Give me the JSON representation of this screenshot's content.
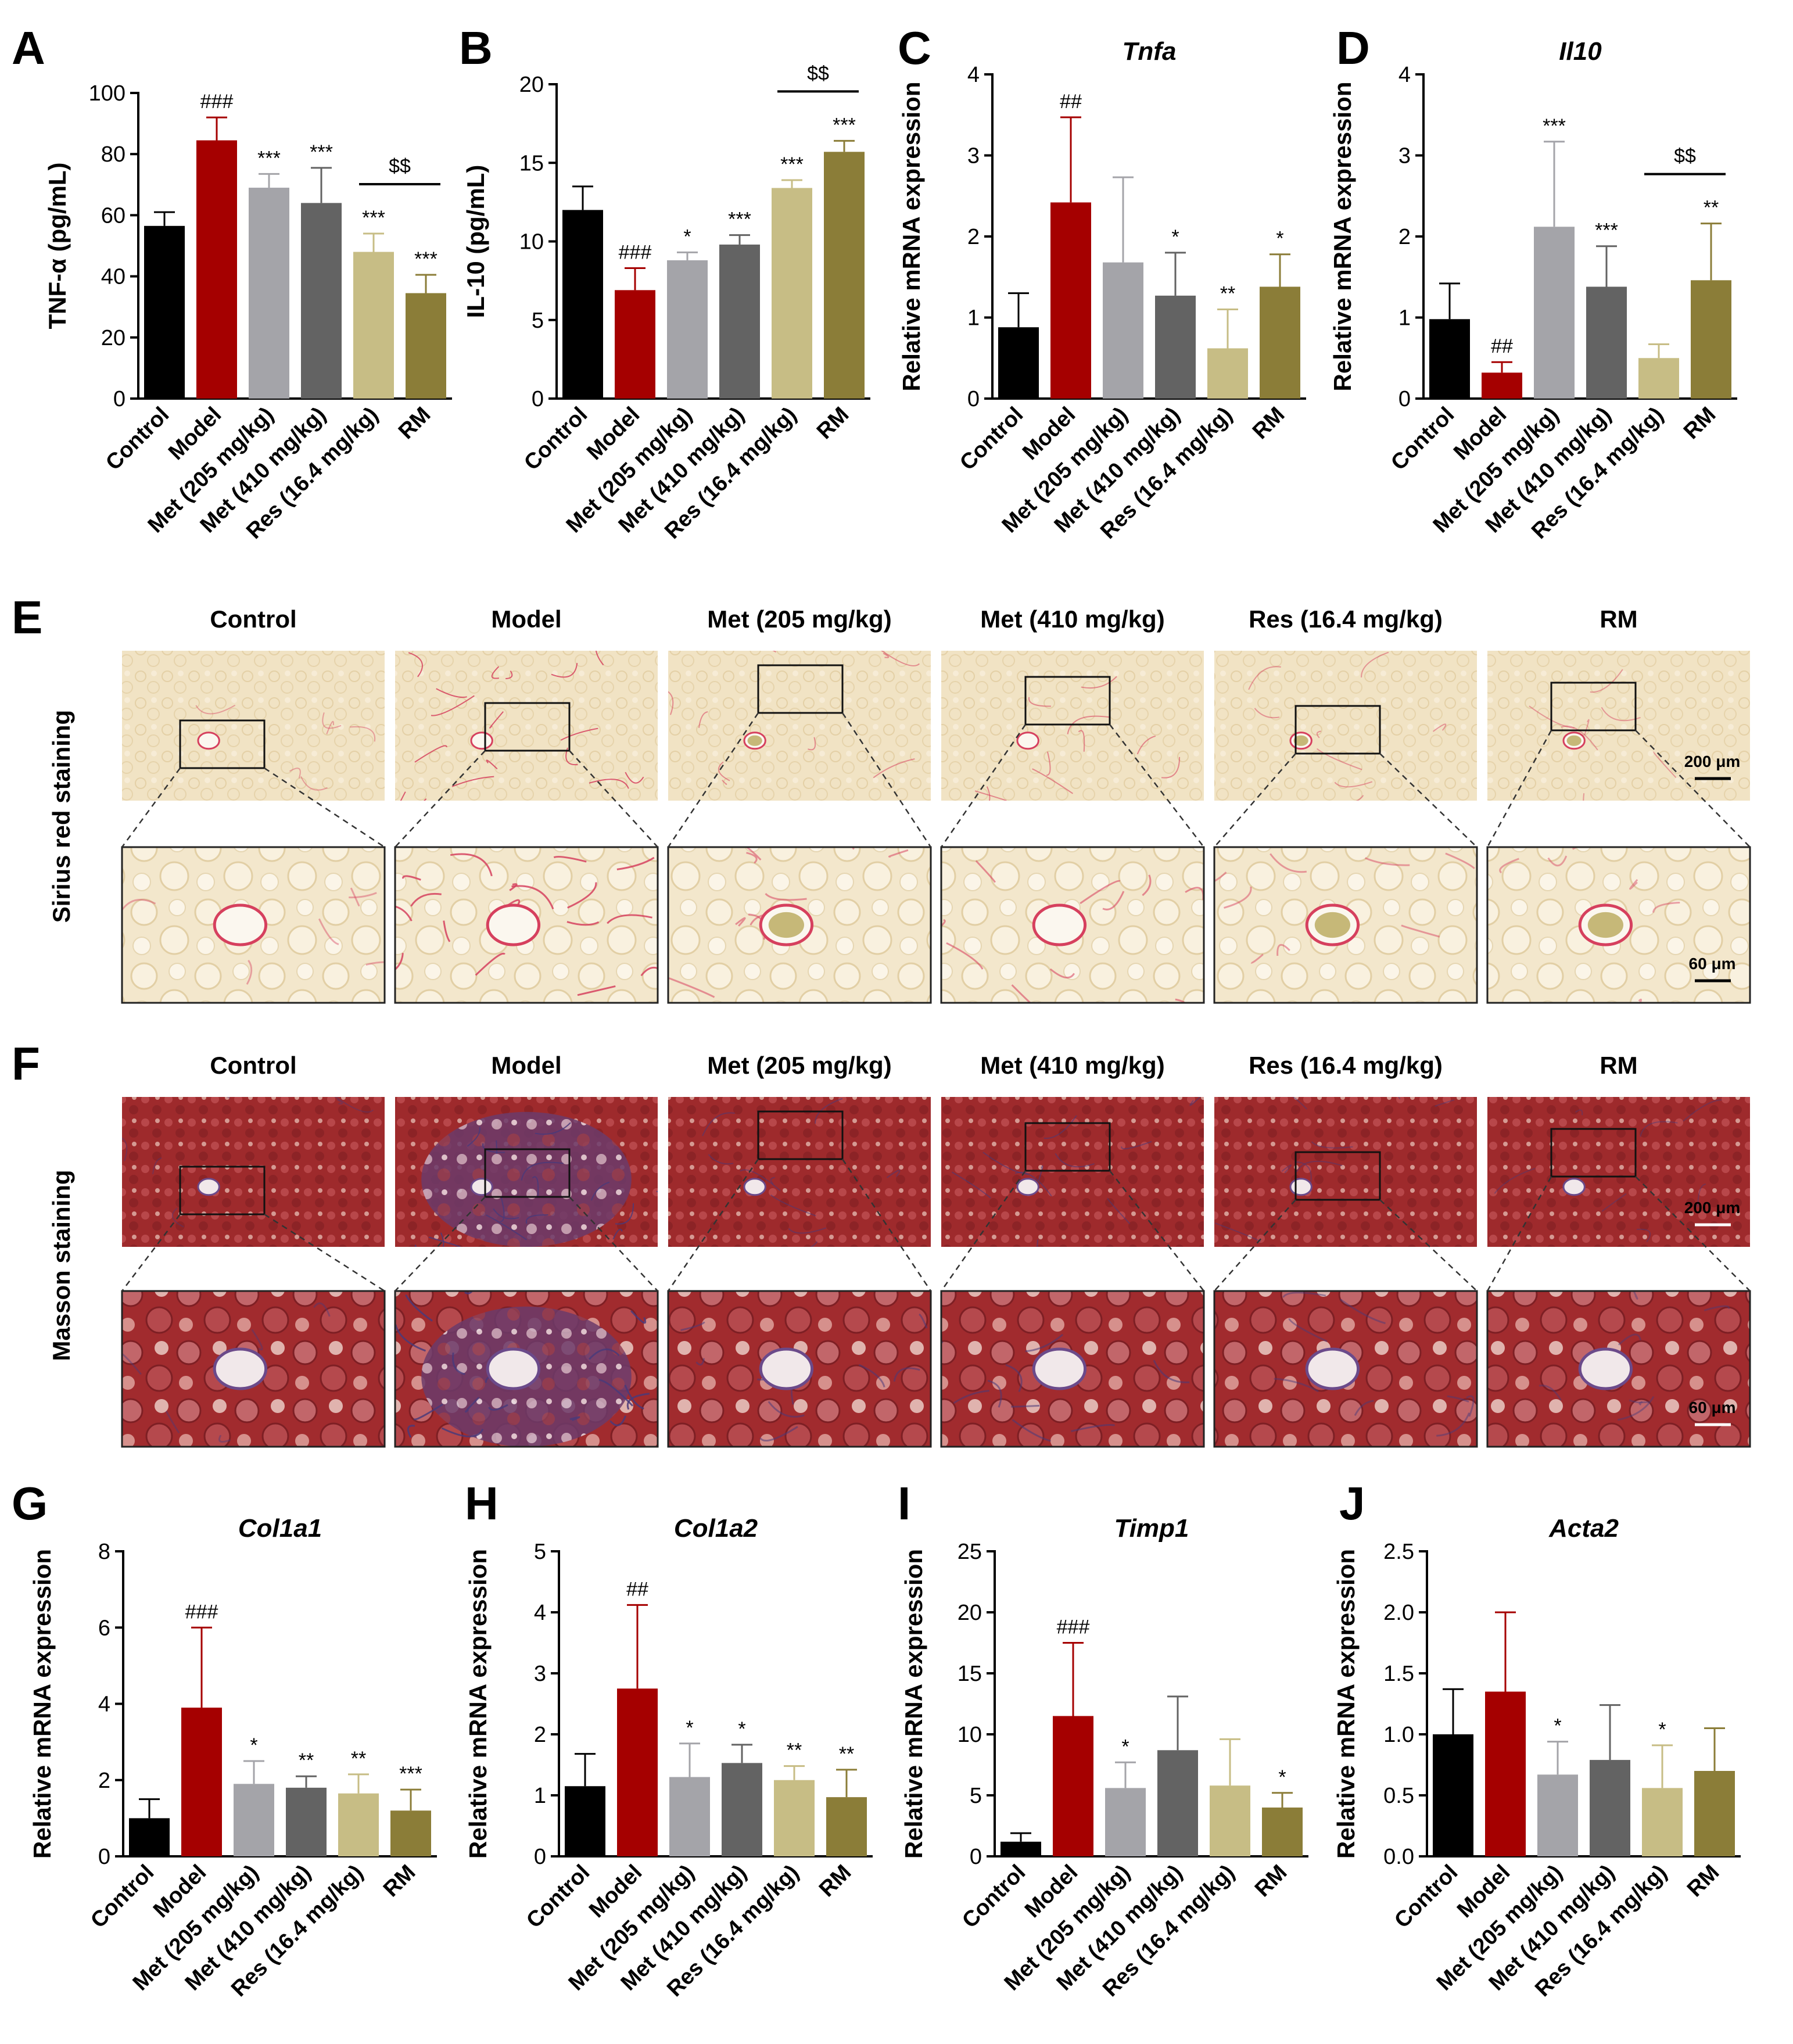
{
  "figure": {
    "groups": [
      "Control",
      "Model",
      "Met (205 mg/kg)",
      "Met (410 mg/kg)",
      "Res (16.4 mg/kg)",
      "RM"
    ],
    "colors": [
      "#000000",
      "#a50000",
      "#a4a4a9",
      "#636363",
      "#c7bd85",
      "#8b7d38"
    ],
    "histology_headers": [
      "Control",
      "Model",
      "Met (205 mg/kg)",
      "Met (410 mg/kg)",
      "Res (16.4 mg/kg)",
      "RM"
    ],
    "row_labels": {
      "sirius": "Sirius red staining",
      "masson": "Masson staining"
    },
    "panel_letters": {
      "E": "E",
      "F": "F"
    },
    "scale_bars": {
      "overview": "200 μm",
      "zoom": "60 μm"
    },
    "tissue_colors": {
      "sirius_bg": "#f1e3c4",
      "sirius_fiber": "#d6405e",
      "masson_bg": "#9e2a2c",
      "masson_fiber": "#4a3a7a"
    }
  },
  "chart_data": [
    {
      "letter": "A",
      "type": "bar",
      "title": "",
      "ylabel": "TNF-α (pg/mL)",
      "ylim": [
        0,
        100
      ],
      "ticks": [
        "0",
        "20",
        "40",
        "60",
        "80",
        "100"
      ],
      "categories": [
        "Control",
        "Model",
        "Met (205 mg/kg)",
        "Met (410 mg/kg)",
        "Res (16.4 mg/kg)",
        "RM"
      ],
      "values": [
        56.5,
        84.5,
        69,
        64,
        48,
        34.5
      ],
      "errors": [
        4.5,
        7.5,
        4.5,
        11.5,
        6,
        6
      ],
      "annotations": [
        "",
        "###",
        "***",
        "***",
        "***",
        "***"
      ],
      "bracket": {
        "label": "$$",
        "between": [
          4,
          5
        ]
      }
    },
    {
      "letter": "B",
      "type": "bar",
      "title": "",
      "ylabel": "IL-10 (pg/mL)",
      "ylim": [
        0,
        20
      ],
      "ticks": [
        "0",
        "5",
        "10",
        "15",
        "20"
      ],
      "categories": [
        "Control",
        "Model",
        "Met (205 mg/kg)",
        "Met (410 mg/kg)",
        "Res (16.4 mg/kg)",
        "RM"
      ],
      "values": [
        12,
        6.9,
        8.8,
        9.8,
        13.4,
        15.7
      ],
      "errors": [
        1.5,
        1.4,
        0.5,
        0.6,
        0.5,
        0.7
      ],
      "annotations": [
        "",
        "###",
        "*",
        "***",
        "***",
        "***"
      ],
      "bracket": {
        "label": "$$",
        "between": [
          4,
          5
        ]
      }
    },
    {
      "letter": "C",
      "type": "bar",
      "title": "Tnfa",
      "ylabel": "Relative mRNA expression",
      "ylim": [
        0,
        4
      ],
      "ticks": [
        "0",
        "1",
        "2",
        "3",
        "4"
      ],
      "categories": [
        "Control",
        "Model",
        "Met (205 mg/kg)",
        "Met (410 mg/kg)",
        "Res (16.4 mg/kg)",
        "RM"
      ],
      "values": [
        0.88,
        2.42,
        1.68,
        1.27,
        0.62,
        1.38
      ],
      "errors": [
        0.42,
        1.05,
        1.05,
        0.53,
        0.48,
        0.4
      ],
      "annotations": [
        "",
        "##",
        "",
        "*",
        "**",
        "*"
      ],
      "bracket": null
    },
    {
      "letter": "D",
      "type": "bar",
      "title": "Il10",
      "ylabel": "Relative mRNA expression",
      "ylim": [
        0,
        4
      ],
      "ticks": [
        "0",
        "1",
        "2",
        "3",
        "4"
      ],
      "categories": [
        "Control",
        "Model",
        "Met (205 mg/kg)",
        "Met (410 mg/kg)",
        "Res (16.4 mg/kg)",
        "RM"
      ],
      "values": [
        0.98,
        0.32,
        2.12,
        1.38,
        0.5,
        1.46
      ],
      "errors": [
        0.44,
        0.13,
        1.05,
        0.5,
        0.17,
        0.7
      ],
      "annotations": [
        "",
        "##",
        "***",
        "***",
        "",
        "**"
      ],
      "bracket": {
        "label": "$$",
        "between": [
          4,
          5
        ]
      }
    },
    {
      "letter": "G",
      "type": "bar",
      "title": "Col1a1",
      "ylabel": "Relative mRNA expression",
      "ylim": [
        0,
        8
      ],
      "ticks": [
        "0",
        "2",
        "4",
        "6",
        "8"
      ],
      "categories": [
        "Control",
        "Model",
        "Met (205 mg/kg)",
        "Met (410 mg/kg)",
        "Res (16.4 mg/kg)",
        "RM"
      ],
      "values": [
        1,
        3.9,
        1.9,
        1.8,
        1.65,
        1.2
      ],
      "errors": [
        0.5,
        2.1,
        0.6,
        0.3,
        0.5,
        0.55
      ],
      "annotations": [
        "",
        "###",
        "*",
        "**",
        "**",
        "***"
      ],
      "bracket": null
    },
    {
      "letter": "H",
      "type": "bar",
      "title": "Col1a2",
      "ylabel": "Relative mRNA expression",
      "ylim": [
        0,
        5
      ],
      "ticks": [
        "0",
        "1",
        "2",
        "3",
        "4",
        "5"
      ],
      "categories": [
        "Control",
        "Model",
        "Met (205 mg/kg)",
        "Met (410 mg/kg)",
        "Res (16.4 mg/kg)",
        "RM"
      ],
      "values": [
        1.15,
        2.75,
        1.3,
        1.53,
        1.25,
        0.97
      ],
      "errors": [
        0.53,
        1.37,
        0.55,
        0.3,
        0.23,
        0.45
      ],
      "annotations": [
        "",
        "##",
        "*",
        "*",
        "**",
        "**"
      ],
      "bracket": null
    },
    {
      "letter": "I",
      "type": "bar",
      "title": "Timp1",
      "ylabel": "Relative mRNA expression",
      "ylim": [
        0,
        25
      ],
      "ticks": [
        "0",
        "5",
        "10",
        "15",
        "20",
        "25"
      ],
      "categories": [
        "Control",
        "Model",
        "Met (205 mg/kg)",
        "Met (410 mg/kg)",
        "Res (16.4 mg/kg)",
        "RM"
      ],
      "values": [
        1.2,
        11.5,
        5.6,
        8.7,
        5.8,
        4
      ],
      "errors": [
        0.7,
        6,
        2.1,
        4.4,
        3.8,
        1.2
      ],
      "annotations": [
        "",
        "###",
        "*",
        "",
        "",
        "*"
      ],
      "bracket": null
    },
    {
      "letter": "J",
      "type": "bar",
      "title": "Acta2",
      "ylabel": "Relative mRNA expression",
      "ylim": [
        0,
        2.5
      ],
      "ticks": [
        "0.0",
        "0.5",
        "1.0",
        "1.5",
        "2.0",
        "2.5"
      ],
      "categories": [
        "Control",
        "Model",
        "Met (205 mg/kg)",
        "Met (410 mg/kg)",
        "Res (16.4 mg/kg)",
        "RM"
      ],
      "values": [
        1,
        1.35,
        0.67,
        0.79,
        0.56,
        0.7
      ],
      "errors": [
        0.37,
        0.65,
        0.27,
        0.45,
        0.35,
        0.35
      ],
      "annotations": [
        "",
        "",
        "*",
        "",
        "*",
        ""
      ],
      "bracket": null
    }
  ]
}
